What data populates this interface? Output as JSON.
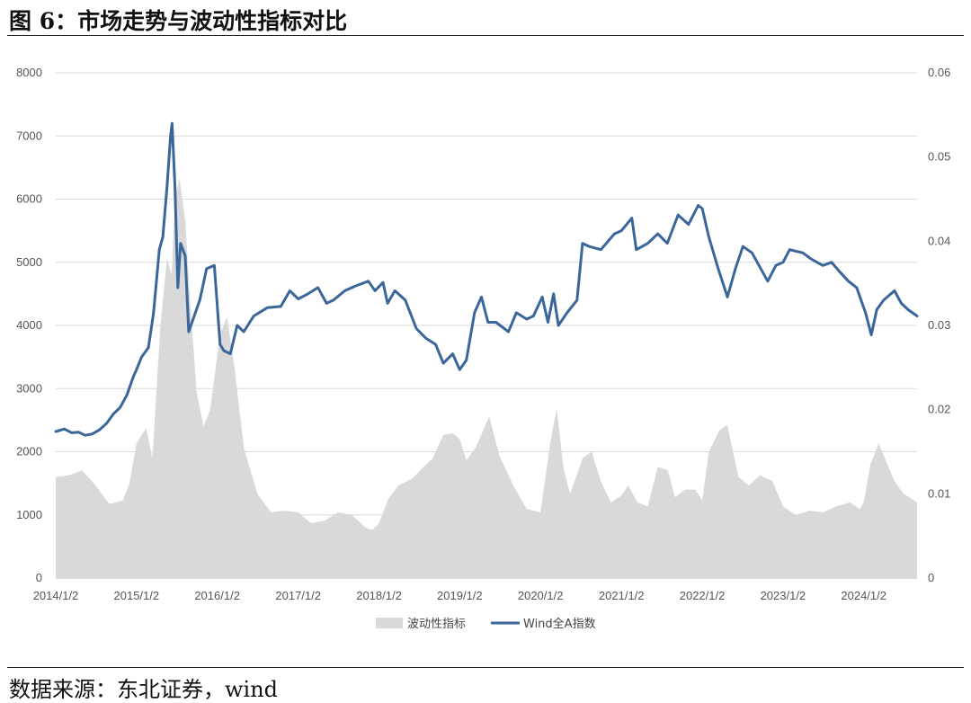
{
  "figure": {
    "title": "图 6：市场走势与波动性指标对比",
    "source": "数据来源：东北证券，wind"
  },
  "chart_data": {
    "type": "line",
    "title": "图 6：市场走势与波动性指标对比",
    "x_axis": {
      "ticks": [
        "2014/1/2",
        "2015/1/2",
        "2016/1/2",
        "2017/1/2",
        "2018/1/2",
        "2019/1/2",
        "2020/1/2",
        "2021/1/2",
        "2022/1/2",
        "2023/1/2",
        "2024/1/2"
      ],
      "range": [
        "2014/1/2",
        "2024/8/30"
      ]
    },
    "y_left": {
      "ticks": [
        0,
        1000,
        2000,
        3000,
        4000,
        5000,
        6000,
        7000,
        8000
      ],
      "range": [
        0,
        8000
      ]
    },
    "y_right": {
      "ticks": [
        "0",
        "0.01",
        "0.02",
        "0.03",
        "0.04",
        "0.05",
        "0.06"
      ],
      "range": [
        0,
        0.06
      ]
    },
    "grid": true,
    "legend_position": "bottom-center",
    "series": [
      {
        "name": "波动性指标",
        "kind": "area",
        "axis": "right",
        "color": "#d9d9d9",
        "points": [
          [
            "2014/1/2",
            0.012
          ],
          [
            "2014/3/1",
            0.0122
          ],
          [
            "2014/5/1",
            0.0128
          ],
          [
            "2014/7/1",
            0.011
          ],
          [
            "2014/9/1",
            0.0088
          ],
          [
            "2014/11/1",
            0.0092
          ],
          [
            "2014/12/1",
            0.0112
          ],
          [
            "2015/1/2",
            0.016
          ],
          [
            "2015/2/15",
            0.0178
          ],
          [
            "2015/3/15",
            0.0142
          ],
          [
            "2015/4/20",
            0.03
          ],
          [
            "2015/5/20",
            0.038
          ],
          [
            "2015/6/10",
            0.036
          ],
          [
            "2015/6/25",
            0.045
          ],
          [
            "2015/7/15",
            0.0475
          ],
          [
            "2015/8/10",
            0.0425
          ],
          [
            "2015/9/1",
            0.033
          ],
          [
            "2015/10/1",
            0.022
          ],
          [
            "2015/11/1",
            0.018
          ],
          [
            "2015/12/1",
            0.02
          ],
          [
            "2016/1/15",
            0.029
          ],
          [
            "2016/2/15",
            0.031
          ],
          [
            "2016/3/20",
            0.025
          ],
          [
            "2016/5/1",
            0.0155
          ],
          [
            "2016/7/1",
            0.01
          ],
          [
            "2016/9/1",
            0.0078
          ],
          [
            "2016/11/1",
            0.008
          ],
          [
            "2017/1/2",
            0.0078
          ],
          [
            "2017/3/1",
            0.0065
          ],
          [
            "2017/5/1",
            0.0068
          ],
          [
            "2017/7/1",
            0.0078
          ],
          [
            "2017/9/1",
            0.0075
          ],
          [
            "2017/11/1",
            0.006
          ],
          [
            "2017/12/1",
            0.0057
          ],
          [
            "2018/1/2",
            0.0065
          ],
          [
            "2018/2/15",
            0.0095
          ],
          [
            "2018/4/1",
            0.011
          ],
          [
            "2018/6/1",
            0.0118
          ],
          [
            "2018/7/15",
            0.013
          ],
          [
            "2018/9/1",
            0.0142
          ],
          [
            "2018/10/20",
            0.017
          ],
          [
            "2018/12/1",
            0.0172
          ],
          [
            "2019/1/2",
            0.0165
          ],
          [
            "2019/2/1",
            0.014
          ],
          [
            "2019/3/15",
            0.0155
          ],
          [
            "2019/5/15",
            0.0192
          ],
          [
            "2019/7/1",
            0.0145
          ],
          [
            "2019/9/1",
            0.011
          ],
          [
            "2019/11/1",
            0.0082
          ],
          [
            "2020/1/2",
            0.0078
          ],
          [
            "2020/2/15",
            0.016
          ],
          [
            "2020/3/15",
            0.0202
          ],
          [
            "2020/4/15",
            0.013
          ],
          [
            "2020/5/15",
            0.01
          ],
          [
            "2020/7/10",
            0.0142
          ],
          [
            "2020/8/20",
            0.015
          ],
          [
            "2020/10/1",
            0.0115
          ],
          [
            "2020/11/15",
            0.009
          ],
          [
            "2021/1/2",
            0.0098
          ],
          [
            "2021/2/1",
            0.011
          ],
          [
            "2021/3/15",
            0.009
          ],
          [
            "2021/5/1",
            0.0085
          ],
          [
            "2021/6/15",
            0.0132
          ],
          [
            "2021/7/30",
            0.0128
          ],
          [
            "2021/9/1",
            0.0096
          ],
          [
            "2021/10/15",
            0.0105
          ],
          [
            "2021/12/1",
            0.0105
          ],
          [
            "2022/1/2",
            0.0092
          ],
          [
            "2022/2/1",
            0.015
          ],
          [
            "2022/3/20",
            0.0175
          ],
          [
            "2022/4/25",
            0.0182
          ],
          [
            "2022/6/15",
            0.012
          ],
          [
            "2022/8/1",
            0.011
          ],
          [
            "2022/9/20",
            0.0122
          ],
          [
            "2022/11/15",
            0.0115
          ],
          [
            "2023/1/2",
            0.0085
          ],
          [
            "2023/3/1",
            0.0075
          ],
          [
            "2023/5/1",
            0.008
          ],
          [
            "2023/7/1",
            0.0078
          ],
          [
            "2023/9/1",
            0.0085
          ],
          [
            "2023/11/1",
            0.009
          ],
          [
            "2023/12/15",
            0.0082
          ],
          [
            "2024/1/2",
            0.009
          ],
          [
            "2024/2/1",
            0.0135
          ],
          [
            "2024/3/10",
            0.016
          ],
          [
            "2024/4/10",
            0.014
          ],
          [
            "2024/5/20",
            0.0115
          ],
          [
            "2024/7/1",
            0.01
          ],
          [
            "2024/8/30",
            0.009
          ]
        ]
      },
      {
        "name": "Wind全A指数",
        "kind": "line",
        "axis": "left",
        "color": "#3a6699",
        "points": [
          [
            "2014/1/2",
            2320
          ],
          [
            "2014/2/10",
            2360
          ],
          [
            "2014/3/15",
            2300
          ],
          [
            "2014/4/15",
            2310
          ],
          [
            "2014/5/15",
            2260
          ],
          [
            "2014/6/15",
            2280
          ],
          [
            "2014/7/20",
            2350
          ],
          [
            "2014/8/20",
            2450
          ],
          [
            "2014/9/20",
            2600
          ],
          [
            "2014/10/20",
            2700
          ],
          [
            "2014/11/20",
            2900
          ],
          [
            "2014/12/20",
            3200
          ],
          [
            "2015/1/2",
            3300
          ],
          [
            "2015/1/25",
            3500
          ],
          [
            "2015/2/25",
            3650
          ],
          [
            "2015/3/20",
            4200
          ],
          [
            "2015/4/15",
            5200
          ],
          [
            "2015/5/1",
            5400
          ],
          [
            "2015/5/20",
            6200
          ],
          [
            "2015/6/5",
            7000
          ],
          [
            "2015/6/12",
            7200
          ],
          [
            "2015/6/25",
            6200
          ],
          [
            "2015/7/8",
            4600
          ],
          [
            "2015/7/20",
            5300
          ],
          [
            "2015/8/10",
            5100
          ],
          [
            "2015/8/26",
            3900
          ],
          [
            "2015/9/15",
            4100
          ],
          [
            "2015/10/15",
            4400
          ],
          [
            "2015/11/15",
            4900
          ],
          [
            "2015/12/20",
            4950
          ],
          [
            "2016/1/15",
            3700
          ],
          [
            "2016/2/1",
            3600
          ],
          [
            "2016/3/1",
            3550
          ],
          [
            "2016/4/1",
            4000
          ],
          [
            "2016/5/1",
            3900
          ],
          [
            "2016/6/15",
            4150
          ],
          [
            "2016/8/15",
            4280
          ],
          [
            "2016/10/15",
            4300
          ],
          [
            "2016/11/25",
            4550
          ],
          [
            "2017/1/2",
            4420
          ],
          [
            "2017/2/15",
            4500
          ],
          [
            "2017/4/1",
            4600
          ],
          [
            "2017/5/10",
            4350
          ],
          [
            "2017/6/10",
            4400
          ],
          [
            "2017/8/1",
            4550
          ],
          [
            "2017/9/15",
            4620
          ],
          [
            "2017/11/15",
            4700
          ],
          [
            "2017/12/15",
            4550
          ],
          [
            "2018/1/20",
            4680
          ],
          [
            "2018/2/10",
            4350
          ],
          [
            "2018/3/15",
            4550
          ],
          [
            "2018/5/1",
            4400
          ],
          [
            "2018/6/20",
            3950
          ],
          [
            "2018/8/1",
            3800
          ],
          [
            "2018/9/15",
            3700
          ],
          [
            "2018/10/20",
            3400
          ],
          [
            "2018/12/1",
            3550
          ],
          [
            "2019/1/2",
            3300
          ],
          [
            "2019/2/1",
            3450
          ],
          [
            "2019/3/10",
            4200
          ],
          [
            "2019/4/10",
            4450
          ],
          [
            "2019/5/10",
            4050
          ],
          [
            "2019/6/15",
            4050
          ],
          [
            "2019/8/10",
            3900
          ],
          [
            "2019/9/15",
            4200
          ],
          [
            "2019/11/1",
            4100
          ],
          [
            "2019/12/1",
            4150
          ],
          [
            "2020/1/10",
            4450
          ],
          [
            "2020/2/5",
            4050
          ],
          [
            "2020/3/1",
            4500
          ],
          [
            "2020/3/23",
            4000
          ],
          [
            "2020/5/1",
            4200
          ],
          [
            "2020/6/15",
            4400
          ],
          [
            "2020/7/10",
            5300
          ],
          [
            "2020/8/10",
            5250
          ],
          [
            "2020/10/1",
            5200
          ],
          [
            "2020/12/1",
            5450
          ],
          [
            "2021/1/2",
            5500
          ],
          [
            "2021/2/18",
            5700
          ],
          [
            "2021/3/10",
            5200
          ],
          [
            "2021/5/1",
            5300
          ],
          [
            "2021/6/15",
            5450
          ],
          [
            "2021/7/28",
            5300
          ],
          [
            "2021/9/15",
            5750
          ],
          [
            "2021/11/1",
            5600
          ],
          [
            "2021/12/15",
            5900
          ],
          [
            "2022/1/2",
            5850
          ],
          [
            "2022/2/1",
            5400
          ],
          [
            "2022/3/15",
            4900
          ],
          [
            "2022/4/26",
            4450
          ],
          [
            "2022/6/1",
            4900
          ],
          [
            "2022/7/5",
            5250
          ],
          [
            "2022/8/15",
            5150
          ],
          [
            "2022/10/25",
            4700
          ],
          [
            "2022/12/1",
            4950
          ],
          [
            "2023/1/2",
            5000
          ],
          [
            "2023/2/1",
            5200
          ],
          [
            "2023/4/1",
            5150
          ],
          [
            "2023/5/10",
            5050
          ],
          [
            "2023/7/1",
            4950
          ],
          [
            "2023/8/10",
            5000
          ],
          [
            "2023/9/15",
            4850
          ],
          [
            "2023/10/25",
            4700
          ],
          [
            "2023/12/1",
            4600
          ],
          [
            "2024/1/10",
            4200
          ],
          [
            "2024/2/5",
            3850
          ],
          [
            "2024/3/1",
            4250
          ],
          [
            "2024/4/1",
            4400
          ],
          [
            "2024/5/20",
            4550
          ],
          [
            "2024/6/20",
            4350
          ],
          [
            "2024/7/20",
            4250
          ],
          [
            "2024/8/30",
            4150
          ]
        ]
      }
    ]
  }
}
